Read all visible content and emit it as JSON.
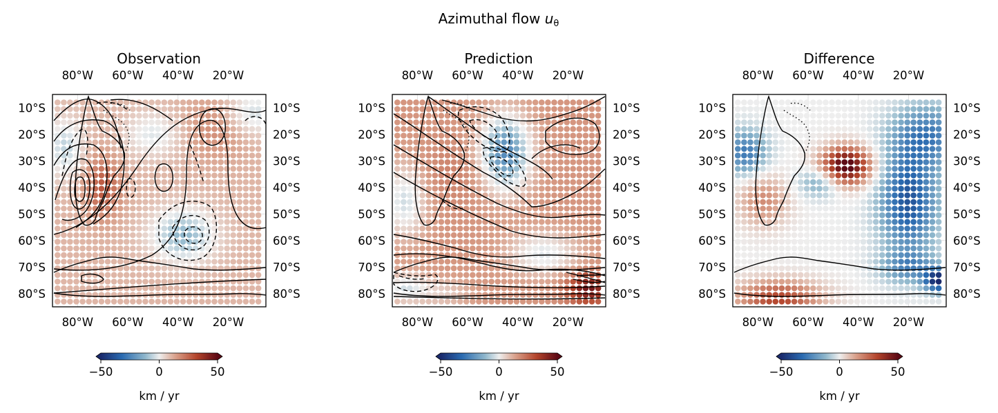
{
  "figure": {
    "title": "Azimuthal flow ",
    "title_symbol": "u",
    "title_subscript": "θ"
  },
  "chart_data": [
    {
      "type": "heatmap",
      "title": "Observation",
      "xlim": [
        -90,
        -5
      ],
      "ylim": [
        -85,
        -5
      ],
      "xticks": [
        "80°W",
        "60°W",
        "40°W",
        "20°W"
      ],
      "yticks": [
        "10°S",
        "20°S",
        "30°S",
        "40°S",
        "50°S",
        "60°S",
        "70°S",
        "80°S"
      ],
      "colorbar": {
        "range": [
          -50,
          50
        ],
        "ticks": [
          "−50",
          "0",
          "50"
        ],
        "label": "km / yr",
        "extend": "both"
      },
      "contours": true
    },
    {
      "type": "heatmap",
      "title": "Prediction",
      "xlim": [
        -90,
        -5
      ],
      "ylim": [
        -85,
        -5
      ],
      "xticks": [
        "80°W",
        "60°W",
        "40°W",
        "20°W"
      ],
      "yticks": [
        "10°S",
        "20°S",
        "30°S",
        "40°S",
        "50°S",
        "60°S",
        "70°S",
        "80°S"
      ],
      "colorbar": {
        "range": [
          -50,
          50
        ],
        "ticks": [
          "−50",
          "0",
          "50"
        ],
        "label": "km / yr",
        "extend": "both"
      },
      "contours": true
    },
    {
      "type": "heatmap",
      "title": "Difference",
      "xlim": [
        -90,
        -5
      ],
      "ylim": [
        -85,
        -5
      ],
      "xticks": [
        "80°W",
        "60°W",
        "40°W",
        "20°W"
      ],
      "yticks": [
        "10°S",
        "20°S",
        "30°S",
        "40°S",
        "50°S",
        "60°S",
        "70°S",
        "80°S"
      ],
      "colorbar": {
        "range": [
          -50,
          50
        ],
        "ticks": [
          "−50",
          "0",
          "50"
        ],
        "label": "km / yr",
        "extend": "both"
      },
      "contours": false
    }
  ],
  "colormap": [
    "#1a2a6c",
    "#2a6ab0",
    "#8fb7cc",
    "#eeeeee",
    "#d9a08a",
    "#b4452c",
    "#5e0a15"
  ]
}
